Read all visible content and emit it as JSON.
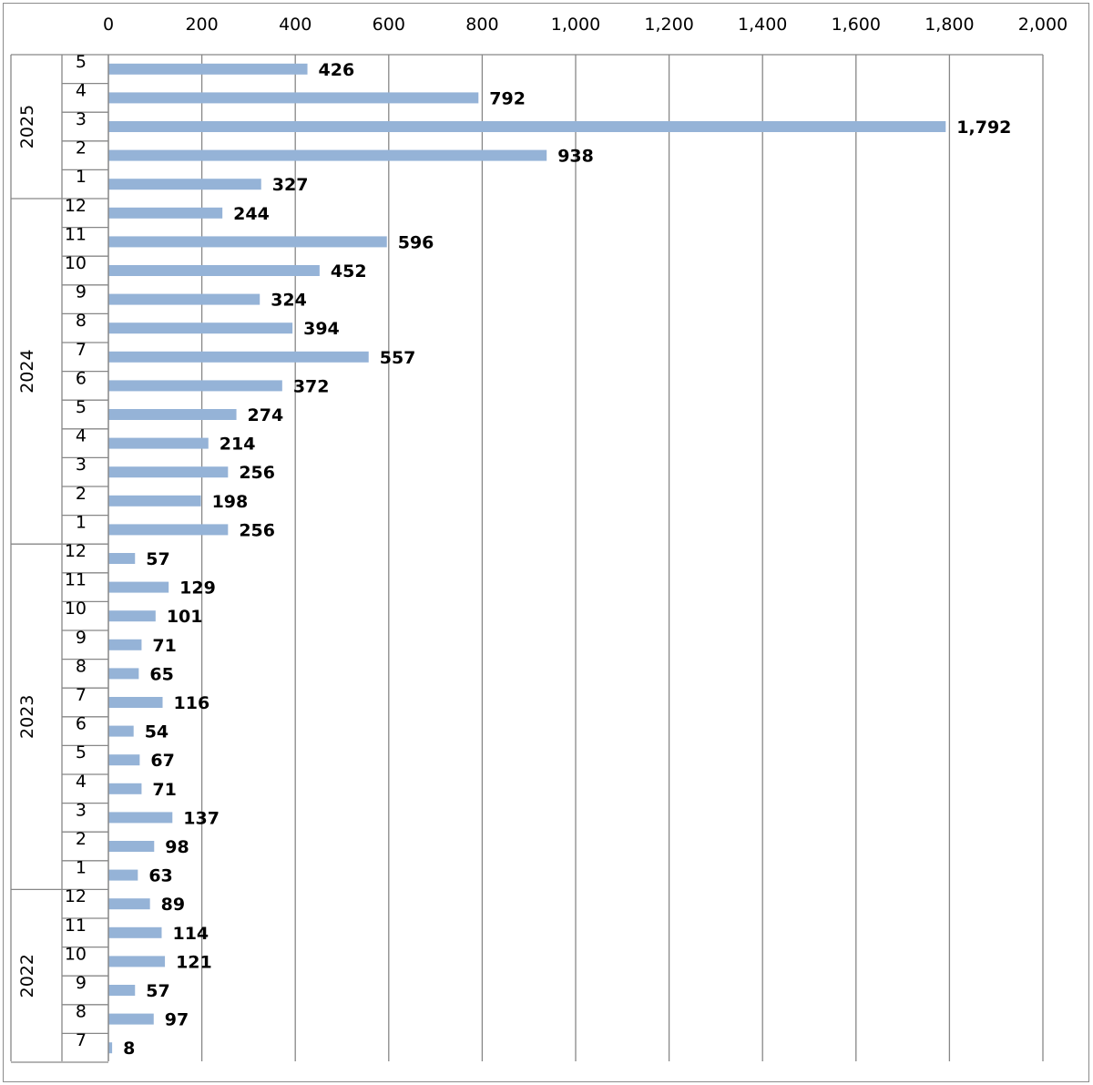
{
  "chart_data": {
    "type": "bar",
    "orientation": "horizontal",
    "xlim": [
      0,
      2000
    ],
    "x_ticks": [
      0,
      200,
      400,
      600,
      800,
      1000,
      1200,
      1400,
      1600,
      1800,
      2000
    ],
    "x_tick_labels": [
      "0",
      "200",
      "400",
      "600",
      "800",
      "1,000",
      "1,200",
      "1,400",
      "1,600",
      "1,800",
      "2,000"
    ],
    "x_axis_position": "top",
    "grid": true,
    "bar_color": "#95b3d7",
    "groups": [
      {
        "year": "2025",
        "categories": [
          "5",
          "4",
          "3",
          "2",
          "1"
        ],
        "values": [
          426,
          792,
          1792,
          938,
          327
        ],
        "labels": [
          "426",
          "792",
          "1,792",
          "938",
          "327"
        ]
      },
      {
        "year": "2024",
        "categories": [
          "12",
          "11",
          "10",
          "9",
          "8",
          "7",
          "6",
          "5",
          "4",
          "3",
          "2",
          "1"
        ],
        "values": [
          244,
          596,
          452,
          324,
          394,
          557,
          372,
          274,
          214,
          256,
          198,
          256
        ],
        "labels": [
          "244",
          "596",
          "452",
          "324",
          "394",
          "557",
          "372",
          "274",
          "214",
          "256",
          "198",
          "256"
        ]
      },
      {
        "year": "2023",
        "categories": [
          "12",
          "11",
          "10",
          "9",
          "8",
          "7",
          "6",
          "5",
          "4",
          "3",
          "2",
          "1"
        ],
        "values": [
          57,
          129,
          101,
          71,
          65,
          116,
          54,
          67,
          71,
          137,
          98,
          63
        ],
        "labels": [
          "57",
          "129",
          "101",
          "71",
          "65",
          "116",
          "54",
          "67",
          "71",
          "137",
          "98",
          "63"
        ]
      },
      {
        "year": "2022",
        "categories": [
          "12",
          "11",
          "10",
          "9",
          "8",
          "7"
        ],
        "values": [
          89,
          114,
          121,
          57,
          97,
          8
        ],
        "labels": [
          "89",
          "114",
          "121",
          "57",
          "97",
          "8"
        ]
      }
    ]
  }
}
